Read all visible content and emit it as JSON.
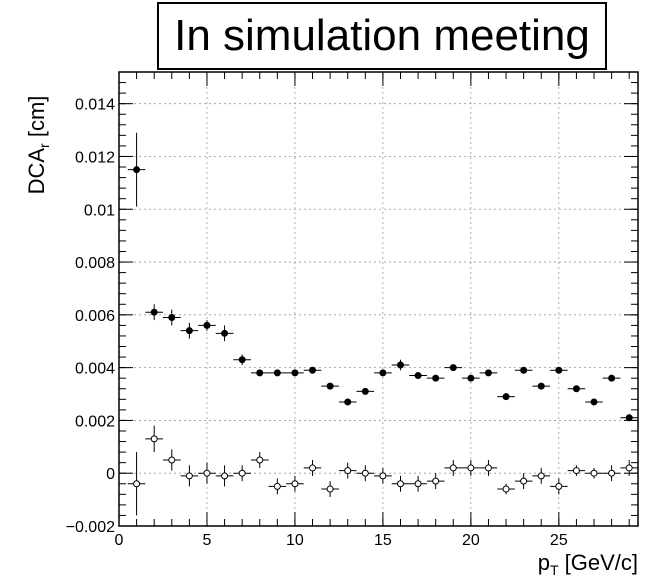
{
  "chart_data": {
    "type": "scatter",
    "title": "In simulation meeting",
    "xlabel": "p_T [GeV/c]",
    "ylabel": "DCA_r [cm]",
    "xlim": [
      0,
      29.5
    ],
    "ylim": [
      -0.002,
      0.0152
    ],
    "x_ticks": [
      "0",
      "5",
      "10",
      "15",
      "20",
      "25"
    ],
    "y_ticks": [
      "−0.002",
      "0",
      "0.002",
      "0.004",
      "0.006",
      "0.008",
      "0.01",
      "0.012",
      "0.014"
    ],
    "grid": true,
    "legend": "none",
    "series": [
      {
        "marker": "filled-circle",
        "x": [
          1,
          2,
          3,
          4,
          5,
          6,
          7,
          8,
          9,
          10,
          11,
          12,
          13,
          14,
          15,
          16,
          17,
          18,
          19,
          20,
          21,
          22,
          23,
          24,
          25,
          26,
          27,
          28,
          29
        ],
        "y": [
          0.0115,
          0.0061,
          0.0059,
          0.0054,
          0.0056,
          0.0053,
          0.0043,
          0.0038,
          0.0038,
          0.0038,
          0.0039,
          0.0033,
          0.0027,
          0.0031,
          0.0038,
          0.0041,
          0.0037,
          0.0036,
          0.004,
          0.0036,
          0.0038,
          0.0029,
          0.0039,
          0.0033,
          0.0039,
          0.0032,
          0.0027,
          0.0036,
          0.0021
        ],
        "yerr": [
          0.0014,
          0.0003,
          0.0003,
          0.0003,
          0.0002,
          0.0003,
          0.0002,
          0.0001,
          0.0001,
          0.0001,
          0.0001,
          0.0001,
          0.0001,
          0.0001,
          0.0001,
          0.0002,
          0.0001,
          0.0001,
          0.0001,
          0.0001,
          0.0001,
          0.0001,
          0.0001,
          0.0001,
          0.0001,
          0.0001,
          0.0001,
          0.0001,
          0.0001
        ]
      },
      {
        "marker": "open-circle",
        "x": [
          1,
          2,
          3,
          4,
          5,
          6,
          7,
          8,
          9,
          10,
          11,
          12,
          13,
          14,
          15,
          16,
          17,
          18,
          19,
          20,
          21,
          22,
          23,
          24,
          25,
          26,
          27,
          28,
          29
        ],
        "y": [
          -0.0004,
          0.0013,
          0.0005,
          -0.0001,
          0.0,
          -0.0001,
          0.0,
          0.0005,
          -0.0005,
          -0.0004,
          0.0002,
          -0.0006,
          0.0001,
          0.0,
          -0.0001,
          -0.0004,
          -0.0004,
          -0.0003,
          0.0002,
          0.0002,
          0.0002,
          -0.0006,
          -0.0003,
          -0.0001,
          -0.0005,
          0.0001,
          0.0,
          0.0,
          0.0002
        ],
        "yerr": [
          0.0012,
          0.0005,
          0.0004,
          0.0004,
          0.0004,
          0.0004,
          0.0003,
          0.0003,
          0.0003,
          0.0003,
          0.0003,
          0.0003,
          0.0003,
          0.0003,
          0.0003,
          0.0003,
          0.0003,
          0.0003,
          0.0003,
          0.0003,
          0.0003,
          0.0002,
          0.0003,
          0.0003,
          0.0003,
          0.0002,
          0.0002,
          0.0003,
          0.0003
        ]
      }
    ]
  }
}
